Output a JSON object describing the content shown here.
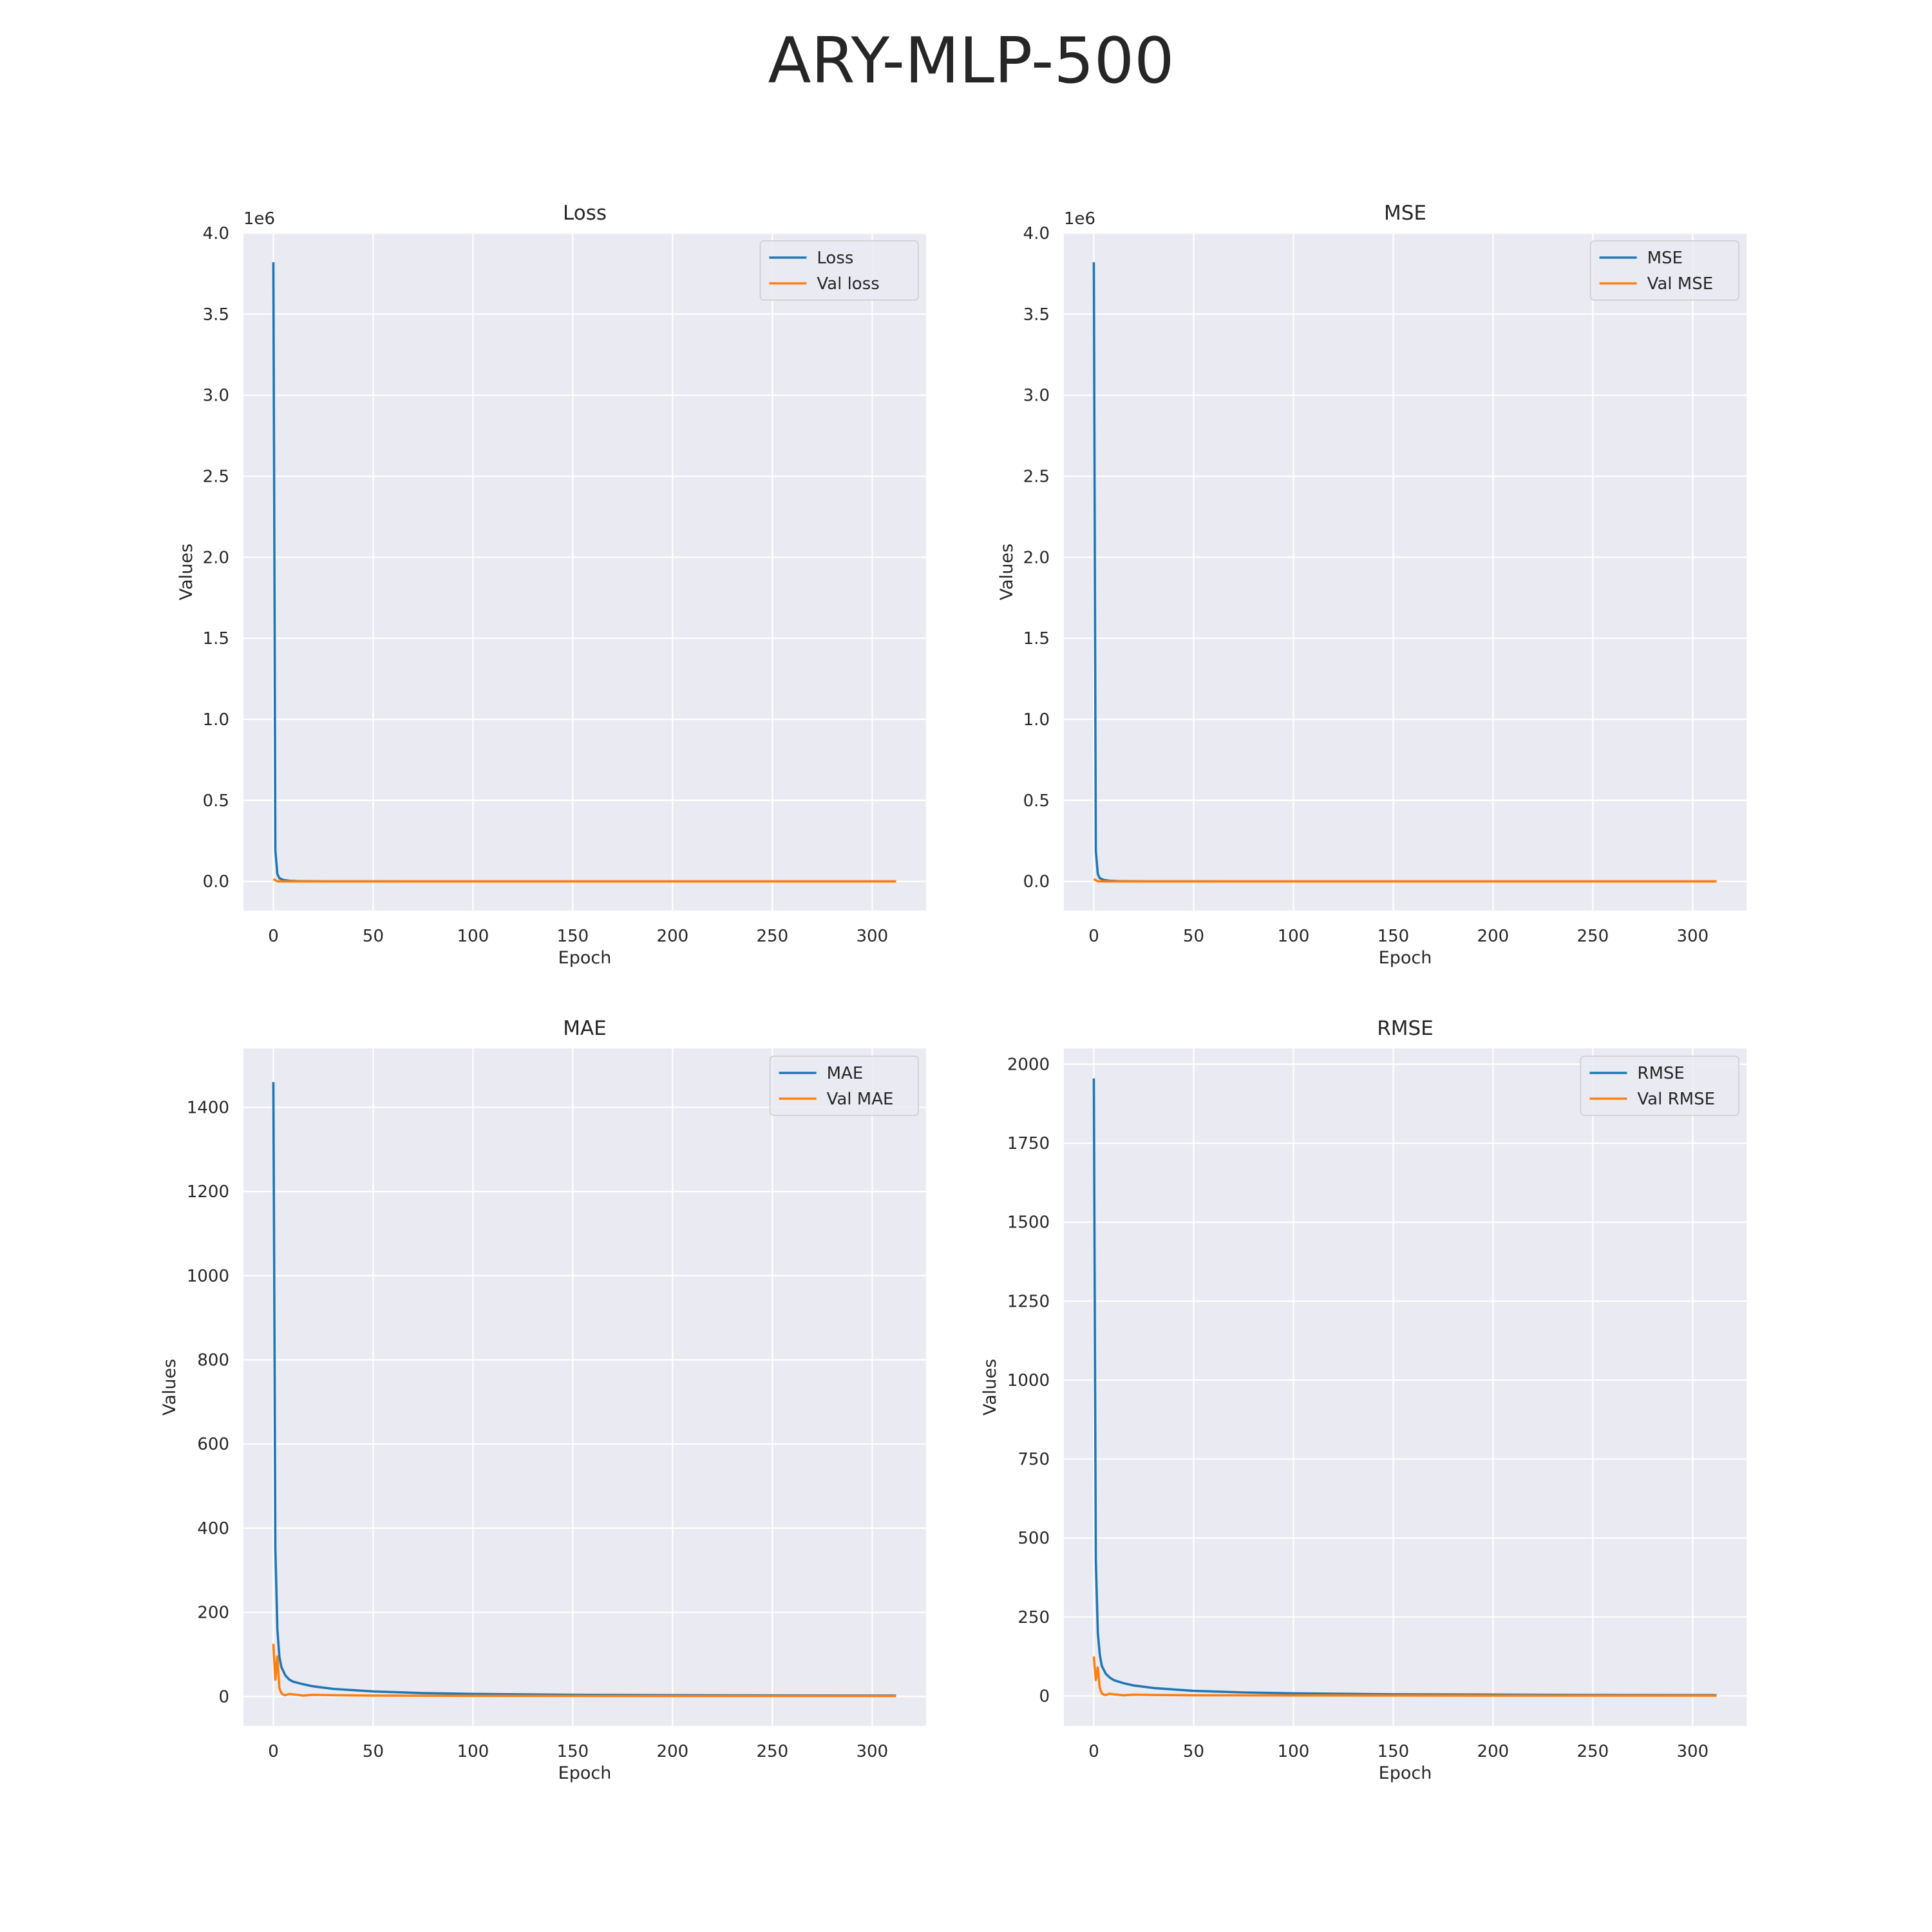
{
  "figure": {
    "title": "ARY-MLP-500"
  },
  "chart_data": [
    {
      "type": "line",
      "title": "Loss",
      "xlabel": "Epoch",
      "ylabel": "Values",
      "offset_label": "1e6",
      "xlim": [
        -15,
        327
      ],
      "ylim": [
        -0.18,
        4.0
      ],
      "xticks": [
        0,
        50,
        100,
        150,
        200,
        250,
        300
      ],
      "xtick_labels": [
        "0",
        "50",
        "100",
        "150",
        "200",
        "250",
        "300"
      ],
      "yticks": [
        0,
        0.5,
        1.0,
        1.5,
        2.0,
        2.5,
        3.0,
        3.5,
        4.0
      ],
      "ytick_labels": [
        "0.0",
        "0.5",
        "1.0",
        "1.5",
        "2.0",
        "2.5",
        "3.0",
        "3.5",
        "4.0"
      ],
      "grid": true,
      "legend": "top-right",
      "series": [
        {
          "name": "Loss",
          "color": "#1f77b4",
          "x": [
            0,
            1,
            2,
            3,
            5,
            8,
            12,
            20,
            40,
            80,
            150,
            250,
            312
          ],
          "y": [
            3.82,
            0.19,
            0.045,
            0.02,
            0.009,
            0.004,
            0.002,
            0.001,
            0.0004,
            0.0002,
            0.0001,
            5e-05,
            4e-05
          ]
        },
        {
          "name": "Val loss",
          "color": "#ff7f0e",
          "x": [
            0,
            1,
            2,
            3,
            5,
            10,
            20,
            50,
            100,
            200,
            312
          ],
          "y": [
            0.015,
            0.008,
            0.001,
            0.0005,
            0.0002,
            0.0001,
            5e-05,
            3e-05,
            2e-05,
            1e-05,
            1e-05
          ]
        }
      ]
    },
    {
      "type": "line",
      "title": "MSE",
      "xlabel": "Epoch",
      "ylabel": "Values",
      "offset_label": "1e6",
      "xlim": [
        -15,
        327
      ],
      "ylim": [
        -0.18,
        4.0
      ],
      "xticks": [
        0,
        50,
        100,
        150,
        200,
        250,
        300
      ],
      "xtick_labels": [
        "0",
        "50",
        "100",
        "150",
        "200",
        "250",
        "300"
      ],
      "yticks": [
        0,
        0.5,
        1.0,
        1.5,
        2.0,
        2.5,
        3.0,
        3.5,
        4.0
      ],
      "ytick_labels": [
        "0.0",
        "0.5",
        "1.0",
        "1.5",
        "2.0",
        "2.5",
        "3.0",
        "3.5",
        "4.0"
      ],
      "grid": true,
      "legend": "top-right",
      "series": [
        {
          "name": "MSE",
          "color": "#1f77b4",
          "x": [
            0,
            1,
            2,
            3,
            5,
            8,
            12,
            20,
            40,
            80,
            150,
            250,
            312
          ],
          "y": [
            3.82,
            0.19,
            0.045,
            0.02,
            0.009,
            0.004,
            0.002,
            0.001,
            0.0004,
            0.0002,
            0.0001,
            5e-05,
            4e-05
          ]
        },
        {
          "name": "Val MSE",
          "color": "#ff7f0e",
          "x": [
            0,
            1,
            2,
            3,
            5,
            10,
            20,
            50,
            100,
            200,
            312
          ],
          "y": [
            0.015,
            0.008,
            0.001,
            0.0005,
            0.0002,
            0.0001,
            5e-05,
            3e-05,
            2e-05,
            1e-05,
            1e-05
          ]
        }
      ]
    },
    {
      "type": "line",
      "title": "MAE",
      "xlabel": "Epoch",
      "ylabel": "Values",
      "offset_label": "",
      "xlim": [
        -15,
        327
      ],
      "ylim": [
        -70,
        1540
      ],
      "xticks": [
        0,
        50,
        100,
        150,
        200,
        250,
        300
      ],
      "xtick_labels": [
        "0",
        "50",
        "100",
        "150",
        "200",
        "250",
        "300"
      ],
      "yticks": [
        0,
        200,
        400,
        600,
        800,
        1000,
        1200,
        1400
      ],
      "ytick_labels": [
        "0",
        "200",
        "400",
        "600",
        "800",
        "1000",
        "1200",
        "1400"
      ],
      "grid": true,
      "legend": "top-right",
      "series": [
        {
          "name": "MAE",
          "color": "#1f77b4",
          "x": [
            0,
            1,
            2,
            3,
            4,
            6,
            8,
            10,
            15,
            20,
            30,
            50,
            75,
            100,
            150,
            200,
            250,
            312
          ],
          "y": [
            1460,
            350,
            160,
            95,
            70,
            50,
            40,
            35,
            29,
            24,
            18,
            12,
            8,
            6,
            4,
            3,
            2.5,
            2
          ]
        },
        {
          "name": "Val MAE",
          "color": "#ff7f0e",
          "x": [
            0,
            1,
            2,
            3,
            4,
            5,
            6,
            8,
            10,
            15,
            20,
            30,
            50,
            100,
            200,
            312
          ],
          "y": [
            125,
            40,
            95,
            20,
            8,
            4,
            3,
            6,
            5,
            2,
            4,
            3,
            2,
            1.5,
            1,
            1
          ]
        }
      ]
    },
    {
      "type": "line",
      "title": "RMSE",
      "xlabel": "Epoch",
      "ylabel": "Values",
      "offset_label": "",
      "xlim": [
        -15,
        327
      ],
      "ylim": [
        -95,
        2050
      ],
      "xticks": [
        0,
        50,
        100,
        150,
        200,
        250,
        300
      ],
      "xtick_labels": [
        "0",
        "50",
        "100",
        "150",
        "200",
        "250",
        "300"
      ],
      "yticks": [
        0,
        250,
        500,
        750,
        1000,
        1250,
        1500,
        1750,
        2000
      ],
      "ytick_labels": [
        "0",
        "250",
        "500",
        "750",
        "1000",
        "1250",
        "1500",
        "1750",
        "2000"
      ],
      "grid": true,
      "legend": "top-right",
      "series": [
        {
          "name": "RMSE",
          "color": "#1f77b4",
          "x": [
            0,
            1,
            2,
            3,
            4,
            6,
            8,
            10,
            15,
            20,
            30,
            50,
            75,
            100,
            150,
            200,
            250,
            312
          ],
          "y": [
            1955,
            430,
            200,
            130,
            95,
            70,
            58,
            50,
            40,
            33,
            25,
            16,
            11,
            8,
            5,
            4,
            3,
            2.5
          ]
        },
        {
          "name": "Val RMSE",
          "color": "#ff7f0e",
          "x": [
            0,
            1,
            2,
            3,
            4,
            5,
            6,
            8,
            10,
            15,
            20,
            30,
            50,
            100,
            200,
            312
          ],
          "y": [
            125,
            50,
            90,
            25,
            8,
            4,
            3,
            7,
            5,
            2,
            4,
            3,
            2,
            1.5,
            1,
            1
          ]
        }
      ]
    }
  ]
}
